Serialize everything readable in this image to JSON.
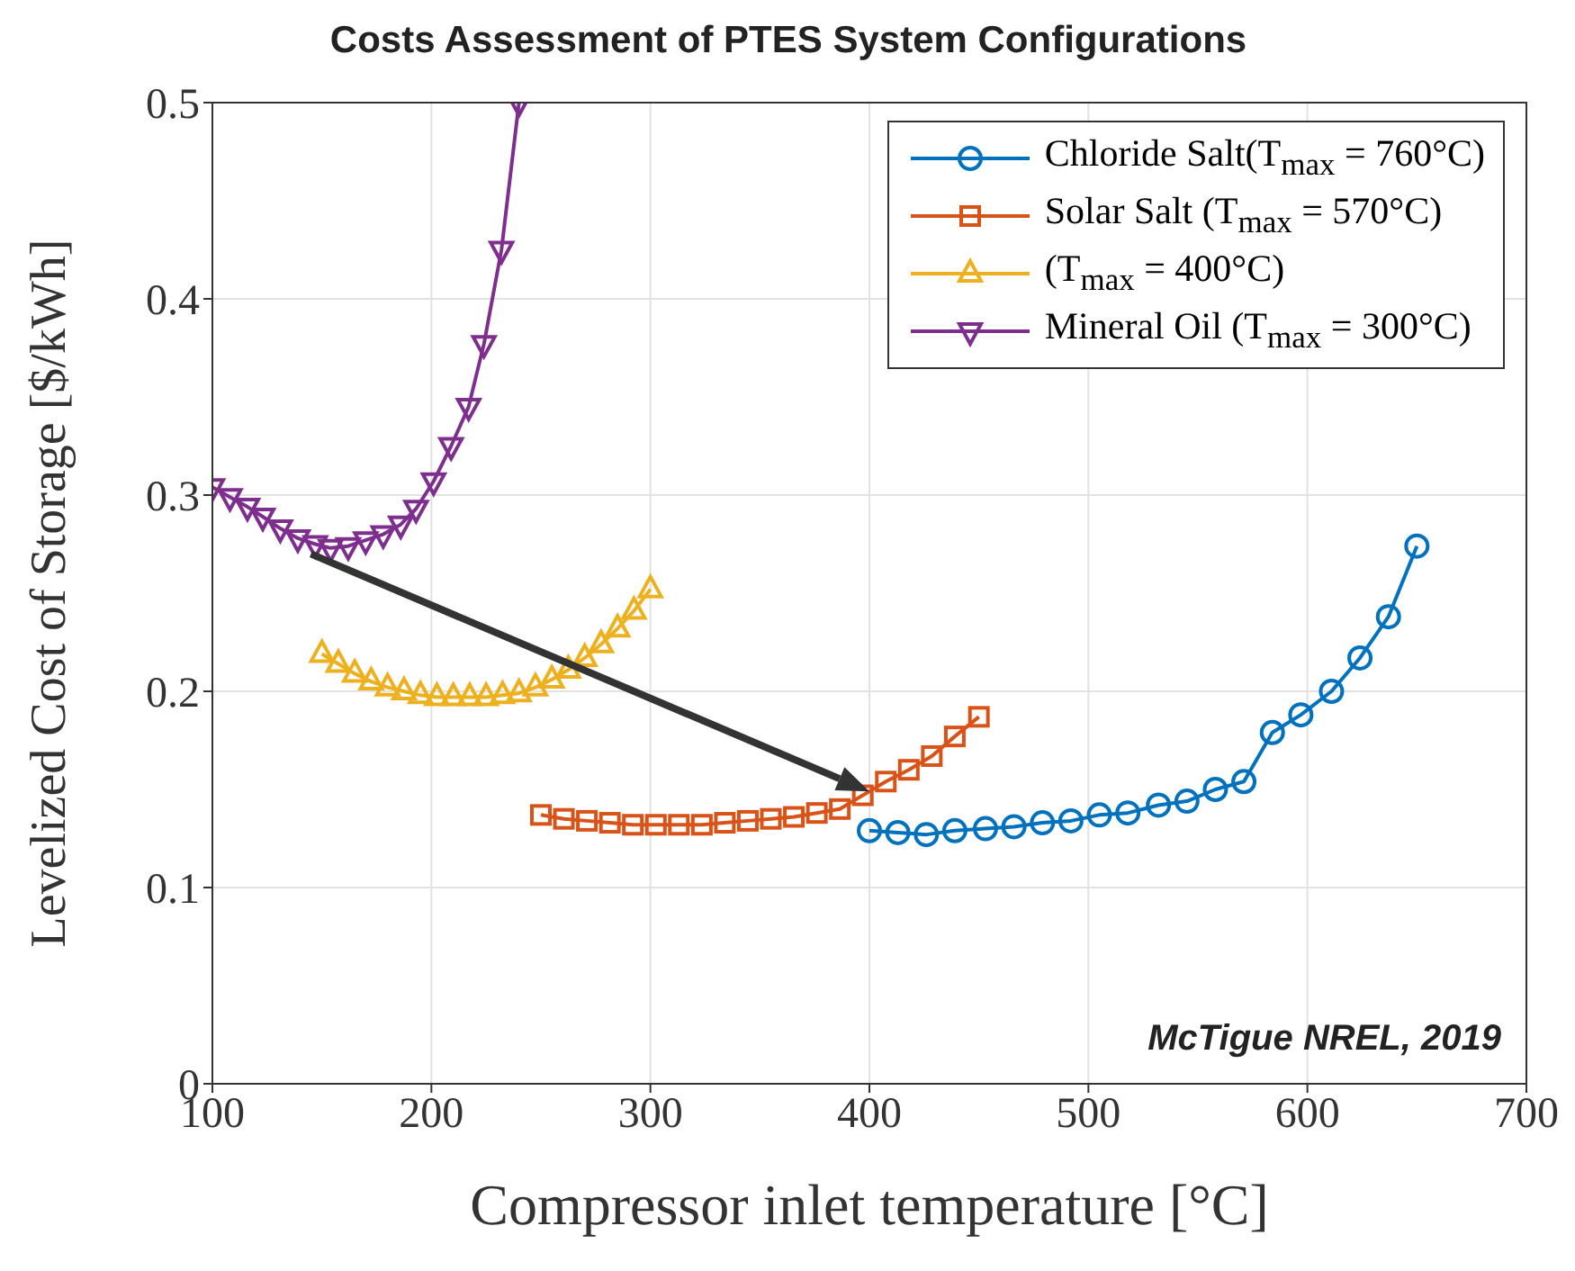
{
  "chart_data": {
    "type": "line",
    "title": "Costs Assessment of PTES System Configurations",
    "xlabel": "Compressor inlet temperature [°C]",
    "ylabel": "Levelized Cost of Storage [$/kWh]",
    "xlim": [
      100,
      700
    ],
    "xticks": [
      100,
      200,
      300,
      400,
      500,
      600,
      700
    ],
    "ylim": [
      0,
      0.5
    ],
    "yticks": [
      0,
      0.1,
      0.2,
      0.3,
      0.4,
      0.5
    ],
    "grid": true,
    "legend": "top right",
    "line_style": "solid",
    "annotations": [
      "McTigue NREL, 2019"
    ],
    "series": [
      {
        "name": "Chloride Salt(T$_{max}$ = 760°C)",
        "color": "#0072bd",
        "marker": "circle",
        "x": [
          400,
          413,
          426,
          439,
          453,
          466,
          479,
          492,
          505,
          518,
          532,
          545,
          558,
          571,
          584,
          597,
          611,
          624,
          637,
          650
        ],
        "values": [
          0.129,
          0.128,
          0.127,
          0.129,
          0.13,
          0.131,
          0.133,
          0.134,
          0.137,
          0.138,
          0.142,
          0.144,
          0.15,
          0.154,
          0.179,
          0.188,
          0.2,
          0.217,
          0.238,
          0.274
        ]
      },
      {
        "name": "Solar Salt (T$_{max}$ = 570°C)",
        "color": "#d95319",
        "marker": "square",
        "x": [
          250,
          260.5,
          271,
          281.5,
          292,
          302.5,
          313,
          323.5,
          334,
          344.5,
          355,
          365.5,
          376,
          386.5,
          397,
          407.5,
          418,
          428.5,
          439,
          450
        ],
        "values": [
          0.137,
          0.135,
          0.134,
          0.133,
          0.132,
          0.132,
          0.132,
          0.132,
          0.133,
          0.134,
          0.135,
          0.136,
          0.138,
          0.14,
          0.147,
          0.154,
          0.16,
          0.167,
          0.177,
          0.187
        ]
      },
      {
        "name": "(T$_{max}$ = 400°C)",
        "color": "#edb120",
        "marker": "triangle",
        "x": [
          150,
          157.5,
          165,
          172.5,
          180,
          187.5,
          195,
          202.5,
          210,
          217.5,
          225,
          232.5,
          240,
          247.5,
          255,
          262.5,
          270,
          277.5,
          285,
          292.5,
          300
        ],
        "values": [
          0.219,
          0.214,
          0.209,
          0.205,
          0.202,
          0.2,
          0.198,
          0.197,
          0.197,
          0.197,
          0.197,
          0.198,
          0.199,
          0.202,
          0.206,
          0.211,
          0.217,
          0.224,
          0.232,
          0.241,
          0.252
        ]
      },
      {
        "name": "Mineral Oil (T$_{max}$ = 300°C)",
        "color": "#7e2f8e",
        "marker": "triangle-down",
        "x": [
          100,
          108,
          116,
          123,
          131,
          139,
          147,
          154,
          162,
          170,
          178,
          186,
          193,
          201,
          209,
          217,
          224,
          232,
          240
        ],
        "values": [
          0.304,
          0.299,
          0.294,
          0.289,
          0.283,
          0.278,
          0.275,
          0.273,
          0.274,
          0.277,
          0.28,
          0.285,
          0.293,
          0.307,
          0.325,
          0.345,
          0.377,
          0.425,
          0.5
        ]
      }
    ]
  }
}
